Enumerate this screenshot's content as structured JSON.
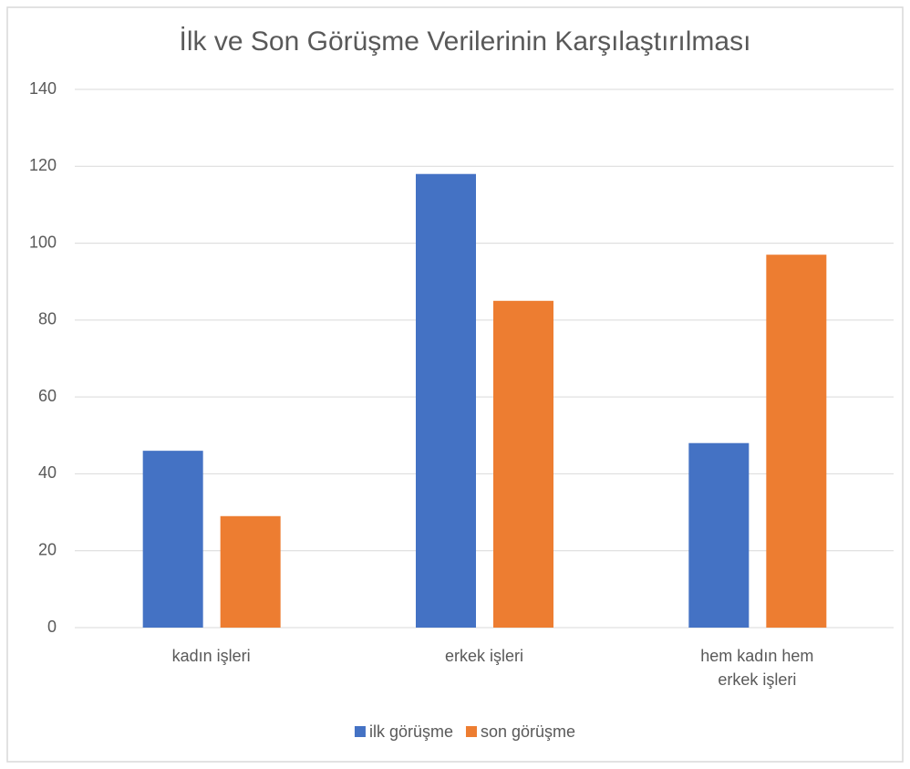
{
  "chart_data": {
    "type": "bar",
    "title": "İlk ve Son Görüşme Verilerinin Karşılaştırılması",
    "categories": [
      "kadın işleri",
      "erkek işleri",
      "hem kadın hem erkek işleri"
    ],
    "series": [
      {
        "name": "ilk görüşme",
        "color": "#4472c4",
        "values": [
          46,
          118,
          48
        ]
      },
      {
        "name": "son görüşme",
        "color": "#ed7d31",
        "values": [
          29,
          85,
          97
        ]
      }
    ],
    "ylim": [
      0,
      140
    ],
    "yticks": [
      0,
      20,
      40,
      60,
      80,
      100,
      120,
      140
    ],
    "grid": true,
    "legend": "bottom"
  }
}
